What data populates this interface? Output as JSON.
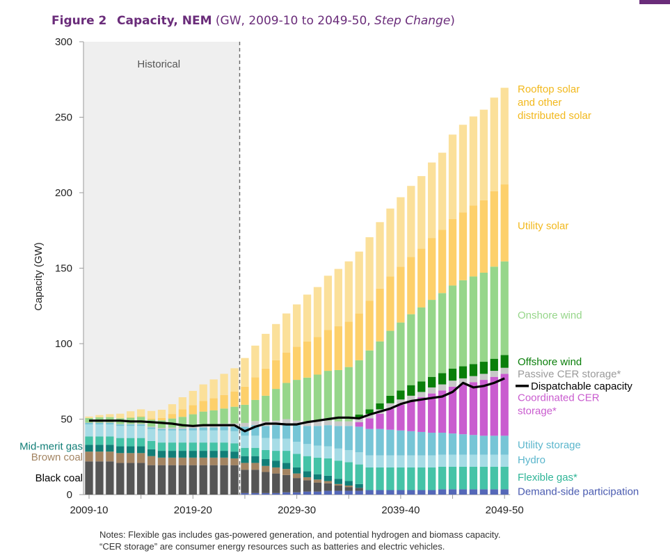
{
  "figure": {
    "number": "Figure 2",
    "title": "Capacity, NEM",
    "subtitle_prefix": "(GW, 2009-10 to 2049-50, ",
    "subtitle_italic": "Step Change",
    "subtitle_suffix": ")"
  },
  "notes": {
    "line1": "Notes: Flexible gas includes gas-powered generation, and potential hydrogen and biomass capacity.",
    "line2": "“CER storage” are consumer energy resources such as batteries and electric vehicles."
  },
  "chart_data": {
    "type": "bar",
    "stacked": true,
    "ylabel": "Capacity (GW)",
    "xlabel": "",
    "ylim": [
      0,
      300
    ],
    "yticks": [
      0,
      50,
      100,
      150,
      200,
      250,
      300
    ],
    "xtick_labels": [
      "2009-10",
      "2019-20",
      "2029-30",
      "2039-40",
      "2049-50"
    ],
    "historical_label": "Historical",
    "historical_until": "2023-24",
    "categories": [
      "2009-10",
      "2010-11",
      "2011-12",
      "2012-13",
      "2013-14",
      "2014-15",
      "2015-16",
      "2016-17",
      "2017-18",
      "2018-19",
      "2019-20",
      "2020-21",
      "2021-22",
      "2022-23",
      "2023-24",
      "2024-25",
      "2025-26",
      "2026-27",
      "2027-28",
      "2028-29",
      "2029-30",
      "2030-31",
      "2031-32",
      "2032-33",
      "2033-34",
      "2034-35",
      "2035-36",
      "2036-37",
      "2037-38",
      "2038-39",
      "2039-40",
      "2040-41",
      "2041-42",
      "2042-43",
      "2043-44",
      "2044-45",
      "2045-46",
      "2046-47",
      "2047-48",
      "2048-49",
      "2049-50"
    ],
    "series": [
      {
        "name": "Demand-side participation",
        "color": "#5568b8",
        "values": [
          0,
          0,
          0,
          0,
          0,
          0,
          0,
          0,
          0,
          0,
          0,
          0,
          0,
          0,
          0,
          1,
          1,
          1,
          1,
          1.5,
          1.5,
          2,
          2,
          2.5,
          2.5,
          2.5,
          2.5,
          3,
          3,
          3,
          3,
          3,
          3,
          3,
          3.5,
          3.5,
          3.5,
          3.5,
          3.5,
          3.5,
          3.5
        ]
      },
      {
        "name": "Black coal",
        "color": "#555555",
        "values": [
          22,
          22,
          22,
          21,
          21,
          21,
          19.5,
          19.5,
          19.5,
          19.5,
          19.5,
          19.5,
          19.5,
          19.5,
          19.5,
          15.5,
          15.5,
          14,
          13,
          11.5,
          9.5,
          7.5,
          6,
          5,
          3.5,
          2.5,
          2,
          0,
          0,
          0,
          0,
          0,
          0,
          0,
          0,
          0,
          0,
          0,
          0,
          0,
          0
        ]
      },
      {
        "name": "Brown coal",
        "color": "#a38462",
        "values": [
          6.5,
          6.5,
          6.5,
          6.5,
          6.5,
          6.5,
          6,
          5,
          5,
          5,
          5,
          5,
          5,
          5,
          4.5,
          4.5,
          4.5,
          4,
          4,
          4,
          3,
          2,
          2,
          1.5,
          1,
          1,
          0,
          0,
          0,
          0,
          0,
          0,
          0,
          0,
          0,
          0,
          0,
          0,
          0,
          0,
          0
        ]
      },
      {
        "name": "Mid-merit gas",
        "color": "#117e77",
        "values": [
          4.5,
          4.5,
          4.5,
          4.5,
          4.5,
          4.5,
          4.5,
          4.5,
          4.5,
          4.5,
          4.5,
          4.5,
          4.5,
          4.5,
          4.5,
          4.5,
          4.5,
          4.5,
          4.5,
          4,
          4,
          4,
          3.5,
          3.5,
          3.5,
          3,
          2.5,
          0,
          0,
          0,
          0,
          0,
          0,
          0,
          0,
          0,
          0,
          0,
          0,
          0,
          0
        ]
      },
      {
        "name": "Flexible gas*",
        "color": "#45c3a7",
        "values": [
          5.5,
          5.5,
          5.5,
          5.5,
          5.5,
          5.5,
          5.5,
          5.5,
          5.5,
          5.5,
          5.5,
          5.5,
          5.5,
          5.5,
          5.5,
          5.5,
          5.5,
          6,
          6.5,
          8,
          9,
          10,
          11,
          11.5,
          12,
          12.5,
          13,
          15,
          15,
          15,
          15,
          15,
          15,
          15,
          15,
          15,
          15,
          15,
          15,
          15,
          15
        ]
      },
      {
        "name": "Hydro",
        "color": "#a6dce6",
        "values": [
          8,
          8,
          8,
          8,
          8,
          8,
          8,
          8,
          8,
          8,
          8,
          8,
          8,
          8,
          8,
          8,
          8,
          8,
          8,
          8,
          8,
          8,
          8,
          8,
          8,
          8,
          8,
          8,
          8,
          8,
          8,
          8,
          8,
          8,
          8,
          8,
          8,
          8,
          8,
          8,
          8
        ]
      },
      {
        "name": "Utility storage",
        "color": "#76c5d6",
        "values": [
          1,
          1,
          1,
          1,
          1,
          1,
          1,
          1,
          1,
          1,
          1.5,
          2,
          2,
          2.5,
          3,
          6,
          7,
          8,
          9,
          10,
          11,
          12,
          13,
          14,
          15,
          16,
          17,
          17.5,
          17.5,
          17,
          16.5,
          16,
          15.5,
          15,
          14.5,
          14,
          13.5,
          13,
          12.5,
          12.5,
          12.5
        ]
      },
      {
        "name": "Coordinated CER storage*",
        "color": "#c95ccf",
        "values": [
          0,
          0,
          0,
          0,
          0,
          0,
          0,
          0,
          0,
          0,
          0,
          0,
          0,
          0,
          0,
          0,
          0,
          0,
          0,
          0,
          0,
          0,
          0,
          0,
          0,
          0,
          3,
          7,
          10,
          14,
          17,
          20,
          23,
          26,
          28,
          31,
          33,
          35,
          37,
          39,
          41
        ]
      },
      {
        "name": "Passive CER storage*",
        "color": "#c8c8c8",
        "values": [
          0.2,
          0.2,
          0.3,
          0.3,
          0.4,
          0.5,
          0.6,
          0.7,
          0.9,
          1,
          1.2,
          1.5,
          1.8,
          2,
          2.2,
          2.5,
          2.7,
          3,
          3,
          3,
          3,
          3,
          3,
          3,
          3,
          3,
          3,
          3,
          3,
          3.5,
          3.5,
          3.5,
          3.5,
          4,
          4,
          4,
          4,
          4,
          4,
          4,
          4
        ]
      },
      {
        "name": "Offshore wind",
        "color": "#0a7f0a",
        "values": [
          0,
          0,
          0,
          0,
          0,
          0,
          0,
          0,
          0,
          0,
          0,
          0,
          0,
          0,
          0,
          0,
          0,
          0,
          0,
          0,
          0,
          0,
          0,
          0,
          0,
          0,
          2,
          3,
          4,
          5,
          6,
          7,
          7,
          7,
          7.5,
          8,
          8,
          8,
          8,
          8,
          8.5
        ]
      },
      {
        "name": "Onshore wind",
        "color": "#96d68a",
        "values": [
          3,
          3.5,
          3.5,
          3.8,
          4,
          4.5,
          4.5,
          5,
          6,
          7,
          8,
          9,
          9.5,
          10,
          11,
          12,
          14,
          17,
          21,
          24,
          27,
          29,
          31,
          33,
          34,
          36,
          36,
          39,
          41,
          43,
          45,
          47,
          49,
          51,
          53,
          55,
          57,
          58,
          59,
          61,
          62
        ]
      },
      {
        "name": "Utility solar",
        "color": "#fdd06b",
        "values": [
          0,
          0,
          0,
          0,
          0.3,
          0.5,
          0.8,
          1.5,
          3,
          5,
          6,
          7,
          8,
          9,
          10,
          12,
          15,
          18,
          19,
          20,
          22,
          24,
          25,
          27,
          29,
          30,
          31,
          33,
          35,
          36,
          37,
          38,
          39,
          41,
          42,
          44,
          45,
          47,
          48,
          50,
          51
        ]
      },
      {
        "name": "Rooftop solar and other distributed solar",
        "color": "#fbe09a",
        "values": [
          1,
          1.5,
          2,
          3,
          4,
          4.5,
          5,
          5.5,
          6.5,
          8,
          9.5,
          11,
          12.5,
          14,
          15.5,
          19,
          21,
          23,
          24,
          26,
          28,
          31,
          33,
          36,
          38,
          40,
          41,
          42,
          44,
          45,
          46,
          47,
          48,
          50,
          51,
          56,
          58,
          59,
          60,
          62,
          64
        ]
      }
    ],
    "line_series": {
      "name": "Dispatchable capacity",
      "color": "#000000",
      "values": [
        49,
        49,
        49,
        49,
        48.5,
        48.5,
        48,
        47.5,
        47,
        46,
        45.5,
        46,
        46,
        46,
        46,
        42,
        45,
        47,
        47,
        46.5,
        46.5,
        48,
        49,
        50,
        51,
        51,
        50.5,
        53,
        55,
        57,
        60,
        62,
        63,
        64,
        65,
        68,
        74,
        71,
        72,
        74,
        77
      ]
    },
    "legend_labels": [
      {
        "series": "Rooftop solar and other distributed solar",
        "lines": [
          "Rooftop solar",
          "and other",
          "distributed solar"
        ],
        "color": "#f2b81c",
        "side": "right",
        "y": 260
      },
      {
        "series": "Utility solar",
        "lines": [
          "Utility solar"
        ],
        "color": "#f2b81c",
        "side": "right",
        "y": 178
      },
      {
        "series": "Onshore wind",
        "lines": [
          "Onshore wind"
        ],
        "color": "#96d68a",
        "side": "right",
        "y": 119
      },
      {
        "series": "Offshore wind",
        "lines": [
          "Offshore wind"
        ],
        "color": "#0a7f0a",
        "side": "right",
        "y": 88
      },
      {
        "series": "Passive CER storage*",
        "lines": [
          "Passive CER storage*"
        ],
        "color": "#9a9a9a",
        "side": "right",
        "y": 80
      },
      {
        "series": "Dispatchable capacity",
        "lines": [
          "Dispatchable capacity"
        ],
        "color": "#000000",
        "side": "right",
        "y": 72,
        "line_key": true
      },
      {
        "series": "Coordinated CER storage*",
        "lines": [
          "Coordinated CER",
          "storage*"
        ],
        "color": "#c95ccf",
        "side": "right",
        "y": 60
      },
      {
        "series": "Utility storage",
        "lines": [
          "Utility storage"
        ],
        "color": "#5bb6cc",
        "side": "right",
        "y": 33
      },
      {
        "series": "Hydro",
        "lines": [
          "Hydro"
        ],
        "color": "#5bb6cc",
        "side": "right",
        "y": 23
      },
      {
        "series": "Flexible gas*",
        "lines": [
          "Flexible gas*"
        ],
        "color": "#2fb597",
        "side": "right",
        "y": 11.5
      },
      {
        "series": "Demand-side participation",
        "lines": [
          "Demand-side participation"
        ],
        "color": "#4a5bb0",
        "side": "right",
        "y": 2
      },
      {
        "series": "Mid-merit gas",
        "lines": [
          "Mid-merit gas"
        ],
        "color": "#117e77",
        "side": "left",
        "y": 32
      },
      {
        "series": "Brown coal",
        "lines": [
          "Brown coal"
        ],
        "color": "#a38462",
        "side": "left",
        "y": 25
      },
      {
        "series": "Black coal",
        "lines": [
          "Black coal"
        ],
        "color": "#000000",
        "side": "left",
        "y": 11
      }
    ],
    "grid": false,
    "legend_placement": "direct labels beside bars"
  }
}
